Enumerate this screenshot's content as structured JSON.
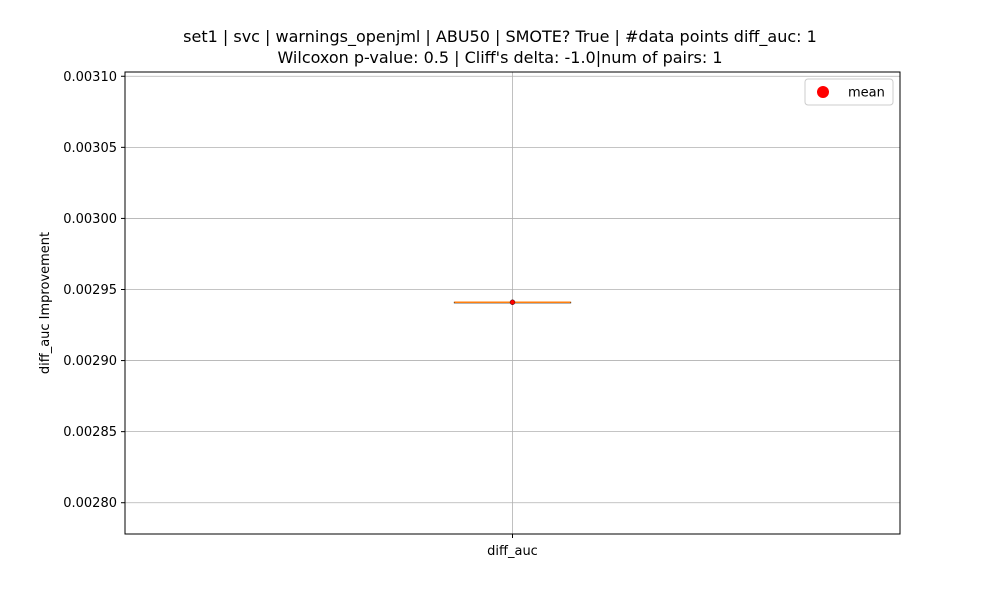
{
  "chart_data": {
    "type": "box",
    "title": "set1 | svc | warnings_openjml | ABU50 | SMOTE? True | #data points diff_auc: 1",
    "subtitle": "Wilcoxon p-value: 0.5 | Cliff's delta: -1.0|num of pairs: 1",
    "ylabel": "diff_auc Improvement",
    "xlabel": "",
    "categories": [
      "diff_auc"
    ],
    "ylim": [
      0.002778,
      0.003103
    ],
    "yticks": [
      0.0028,
      0.00285,
      0.0029,
      0.00295,
      0.003,
      0.00305,
      0.0031
    ],
    "ytick_labels": [
      "0.00280",
      "0.00285",
      "0.00290",
      "0.00295",
      "0.00300",
      "0.00305",
      "0.00310"
    ],
    "boxes": [
      {
        "category": "diff_auc",
        "min": 0.002941,
        "q1": 0.002941,
        "median": 0.002941,
        "q3": 0.002941,
        "max": 0.002941,
        "mean": 0.002941
      }
    ],
    "grid": true,
    "legend": {
      "placement": "top-right",
      "entries": [
        {
          "label": "mean",
          "marker": "circle",
          "color": "#ff0000"
        }
      ]
    },
    "colors": {
      "box": "#000000",
      "median": "#ff7f0e",
      "mean": "#ff0000",
      "grid": "#b0b0b0"
    }
  }
}
